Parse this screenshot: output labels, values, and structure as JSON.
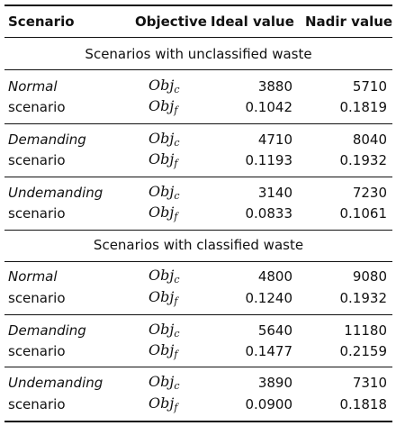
{
  "headers": {
    "scenario": "Scenario",
    "objective": "Objective",
    "ideal": "Ideal value",
    "nadir": "Nadir value"
  },
  "sections": [
    {
      "title": "Scenarios with unclassified waste",
      "groups": [
        {
          "name": "Normal",
          "sub": "scenario",
          "ideal_c": "3880",
          "nadir_c": "5710",
          "ideal_f": "0.1042",
          "nadir_f": "0.1819"
        },
        {
          "name": "Demanding",
          "sub": "scenario",
          "ideal_c": "4710",
          "nadir_c": "8040",
          "ideal_f": "0.1193",
          "nadir_f": "0.1932"
        },
        {
          "name": "Undemanding",
          "sub": "scenario",
          "ideal_c": "3140",
          "nadir_c": "7230",
          "ideal_f": "0.0833",
          "nadir_f": "0.1061"
        }
      ]
    },
    {
      "title": "Scenarios with classified waste",
      "groups": [
        {
          "name": "Normal",
          "sub": "scenario",
          "ideal_c": "4800",
          "nadir_c": "9080",
          "ideal_f": "0.1240",
          "nadir_f": "0.1932"
        },
        {
          "name": "Demanding",
          "sub": "scenario",
          "ideal_c": "5640",
          "nadir_c": "11180",
          "ideal_f": "0.1477",
          "nadir_f": "0.2159"
        },
        {
          "name": "Undemanding",
          "sub": "scenario",
          "ideal_c": "3890",
          "nadir_c": "7310",
          "ideal_f": "0.0900",
          "nadir_f": "0.1818"
        }
      ]
    }
  ],
  "objectives": {
    "c": {
      "base": "Obj",
      "sub": "c"
    },
    "f": {
      "base": "Obj",
      "sub": "f"
    }
  }
}
